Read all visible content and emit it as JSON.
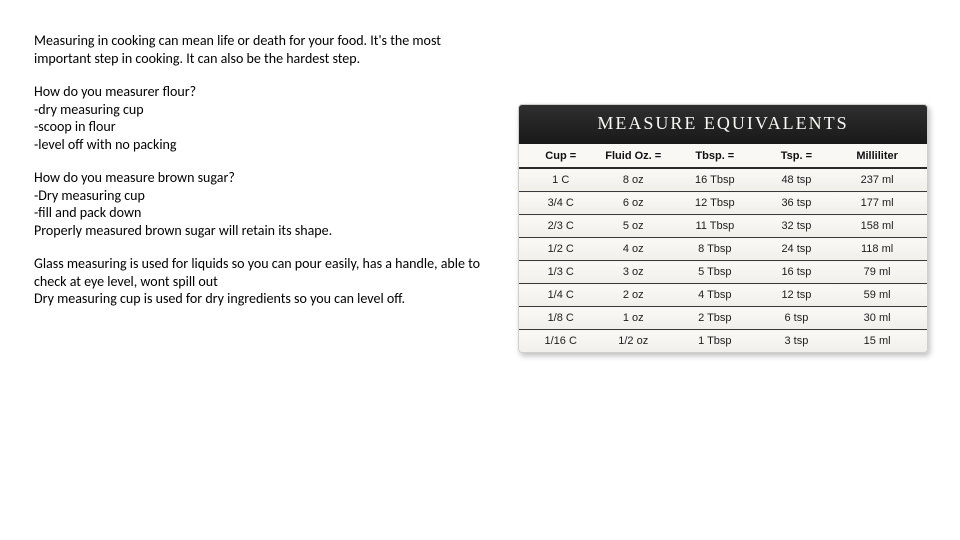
{
  "text": {
    "intro": "Measuring in cooking can mean life or death for your food. It's the most important step in cooking. It can also be the hardest step.",
    "flour_q": "How do you measurer flour?",
    "flour_items": [
      "-dry measuring cup",
      "-scoop in flour",
      "-level off with no packing"
    ],
    "sugar_q": "How do you measure brown sugar?",
    "sugar_items": [
      "-Dry measuring cup",
      "-fill and pack down"
    ],
    "sugar_note": "Properly measured brown sugar will retain its shape.",
    "glass": "Glass measuring is used for liquids so you can pour easily, has a handle, able to check at eye level, wont spill out",
    "dry": "Dry measuring cup is used for dry ingredients so you can level off."
  },
  "chart": {
    "type": "table",
    "title": "MEASURE EQUIVALENTS",
    "columns": [
      "Cup =",
      "Fluid Oz. =",
      "Tbsp. =",
      "Tsp. =",
      "Milliliter"
    ],
    "rows": [
      [
        "1 C",
        "8 oz",
        "16 Tbsp",
        "48 tsp",
        "237 ml"
      ],
      [
        "3/4 C",
        "6 oz",
        "12 Tbsp",
        "36 tsp",
        "177 ml"
      ],
      [
        "2/3 C",
        "5 oz",
        "11 Tbsp",
        "32 tsp",
        "158 ml"
      ],
      [
        "1/2 C",
        "4 oz",
        "8 Tbsp",
        "24 tsp",
        "118 ml"
      ],
      [
        "1/3 C",
        "3 oz",
        "5 Tbsp",
        "16 tsp",
        "79 ml"
      ],
      [
        "1/4 C",
        "2 oz",
        "4 Tbsp",
        "12 tsp",
        "59 ml"
      ],
      [
        "1/8 C",
        "1 oz",
        "2 Tbsp",
        "6 tsp",
        "30 ml"
      ],
      [
        "1/16 C",
        "1/2 oz",
        "1 Tbsp",
        "3 tsp",
        "15 ml"
      ]
    ],
    "title_bg": "#202020",
    "title_color": "#f7f7f5",
    "title_fontsize": 18,
    "header_fontsize": 11,
    "cell_fontsize": 11,
    "header_border_color": "#2a2a2a",
    "row_border_color": "#3a3a3a",
    "card_bg": "#f6f5f1",
    "card_border": "#cfcfcb",
    "col_widths_pct": [
      18,
      20,
      20,
      20,
      22
    ]
  },
  "layout": {
    "page_bg": "#ffffff",
    "text_color": "#000000",
    "body_fontsize": 14
  }
}
